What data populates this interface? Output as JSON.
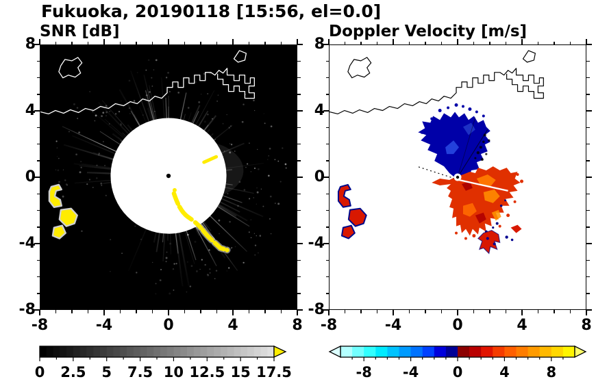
{
  "title": "Fukuoka, 20190118 [15:56, el=0.0]",
  "panels": {
    "snr": {
      "title": "SNR [dB]",
      "x_tick_labels": [
        "-8",
        "-4",
        "0",
        "4",
        "8"
      ],
      "y_tick_labels": [
        "8",
        "4",
        "0",
        "-4",
        "-8"
      ]
    },
    "velocity": {
      "title": "Doppler Velocity [m/s]",
      "x_tick_labels": [
        "-8",
        "-4",
        "0",
        "4",
        "8"
      ],
      "y_tick_labels": [
        "8",
        "4",
        "0",
        "-4",
        "-8"
      ]
    }
  },
  "chart_data": [
    {
      "type": "heatmap",
      "title": "SNR [dB]",
      "station": "Fukuoka",
      "date": "20190118",
      "time": "15:56",
      "elevation": 0.0,
      "xlim": [
        -8,
        8
      ],
      "ylim": [
        -8,
        8
      ],
      "x_major_ticks": [
        -8,
        -4,
        0,
        4,
        8
      ],
      "y_major_ticks": [
        -8,
        -4,
        0,
        4,
        8
      ],
      "radar_origin": [
        0,
        0
      ],
      "background": "#000000",
      "colorbar": {
        "range": [
          0,
          17.5
        ],
        "step": 0.5,
        "tick_values": [
          0,
          2.5,
          5,
          7.5,
          10,
          12.5,
          15,
          17.5
        ],
        "tick_labels": [
          "0",
          "2.5",
          "5",
          "7.5",
          "10",
          "12.5",
          "15",
          "17.5"
        ],
        "type": "grayscale",
        "min_color": "#000000",
        "max_color": "#e0e0e0",
        "over_arrow_color": "#ffee00"
      },
      "features": [
        "white coastline outline with harbor structures along the top",
        "bright radial streaks emanating from the radar at the origin",
        "gray speckle noise surrounding the radar",
        "yellow high-SNR arc curving from the origin toward the southeast",
        "yellow high-SNR patches near the western edge between y=-1 and y=-3.5"
      ]
    },
    {
      "type": "heatmap",
      "title": "Doppler Velocity [m/s]",
      "xlim": [
        -8,
        8
      ],
      "ylim": [
        -8,
        8
      ],
      "x_major_ticks": [
        -8,
        -4,
        0,
        4,
        8
      ],
      "y_major_ticks": [
        -8,
        -4,
        0,
        4,
        8
      ],
      "radar_origin": [
        0,
        0
      ],
      "background": "#ffffff",
      "colorbar": {
        "range": [
          -10,
          10
        ],
        "step": 1,
        "tick_values": [
          -8,
          -4,
          0,
          4,
          8
        ],
        "tick_labels": [
          "-8",
          "-4",
          "0",
          "4",
          "8"
        ],
        "colors": [
          "#b4ffff",
          "#73ffff",
          "#32ffff",
          "#00ebff",
          "#00c3ff",
          "#009bff",
          "#0073ff",
          "#0041ff",
          "#0000dc",
          "#000096",
          "#8c0000",
          "#b90000",
          "#e11400",
          "#f53c00",
          "#ff5f00",
          "#ff7d00",
          "#ff9b00",
          "#ffb900",
          "#ffd700",
          "#fff500"
        ],
        "under_arrow_color": "#dcffff",
        "over_arrow_color": "#ffff69"
      },
      "features": [
        "black coastline outline along the top",
        "dark blue negative-velocity fan north-northeast of the radar (x -2.5..1.8, y 0..3.5)",
        "red-orange positive-velocity fan east-southeast of the radar (x -1.5..3.6, y -3.2..0.5)",
        "detached red echo with dark blue spots near (2,-4)",
        "small red echoes rimmed in dark blue near the western edge (x -7.6..-6, y -0.5..-3.5)"
      ]
    }
  ]
}
